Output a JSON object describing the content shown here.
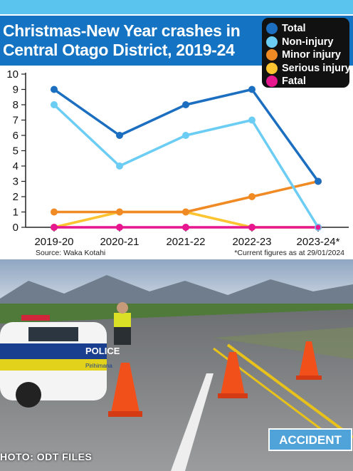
{
  "title_line1": "Christmas-New Year crashes in",
  "title_line2": "Central Otago District, 2019-24",
  "source": "Source: Waka Kotahi",
  "footnote": "*Current figures as at 29/01/2024",
  "photo": {
    "credit": "HOTO: ODT FILES",
    "police_text": "POLICE",
    "police_sub": "Pirihimana",
    "sign_text": "ACCIDENT"
  },
  "colors": {
    "band": "#1473c2",
    "topbar": "#5bc4ee"
  },
  "chart_data": {
    "type": "line",
    "title": "Christmas-New Year crashes in Central Otago District, 2019-24",
    "categories": [
      "2019-20",
      "2020-21",
      "2021-22",
      "2022-23",
      "2023-24*"
    ],
    "ylim": [
      0,
      10
    ],
    "yticks": [
      0,
      1,
      2,
      3,
      4,
      5,
      6,
      7,
      8,
      9,
      10
    ],
    "grid": false,
    "legend_position": "top-right",
    "series": [
      {
        "name": "Total",
        "color": "#1c6fc0",
        "values": [
          9,
          6,
          8,
          9,
          3
        ]
      },
      {
        "name": "Non-injury",
        "color": "#6ccdf4",
        "values": [
          8,
          4,
          6,
          7,
          0
        ]
      },
      {
        "name": "Minor injury",
        "color": "#f08a24",
        "values": [
          1,
          1,
          1,
          2,
          3
        ]
      },
      {
        "name": "Serious injury",
        "color": "#fcc430",
        "values": [
          0,
          1,
          1,
          0,
          0
        ]
      },
      {
        "name": "Fatal",
        "color": "#e6178f",
        "values": [
          0,
          0,
          0,
          0,
          0
        ]
      }
    ]
  }
}
